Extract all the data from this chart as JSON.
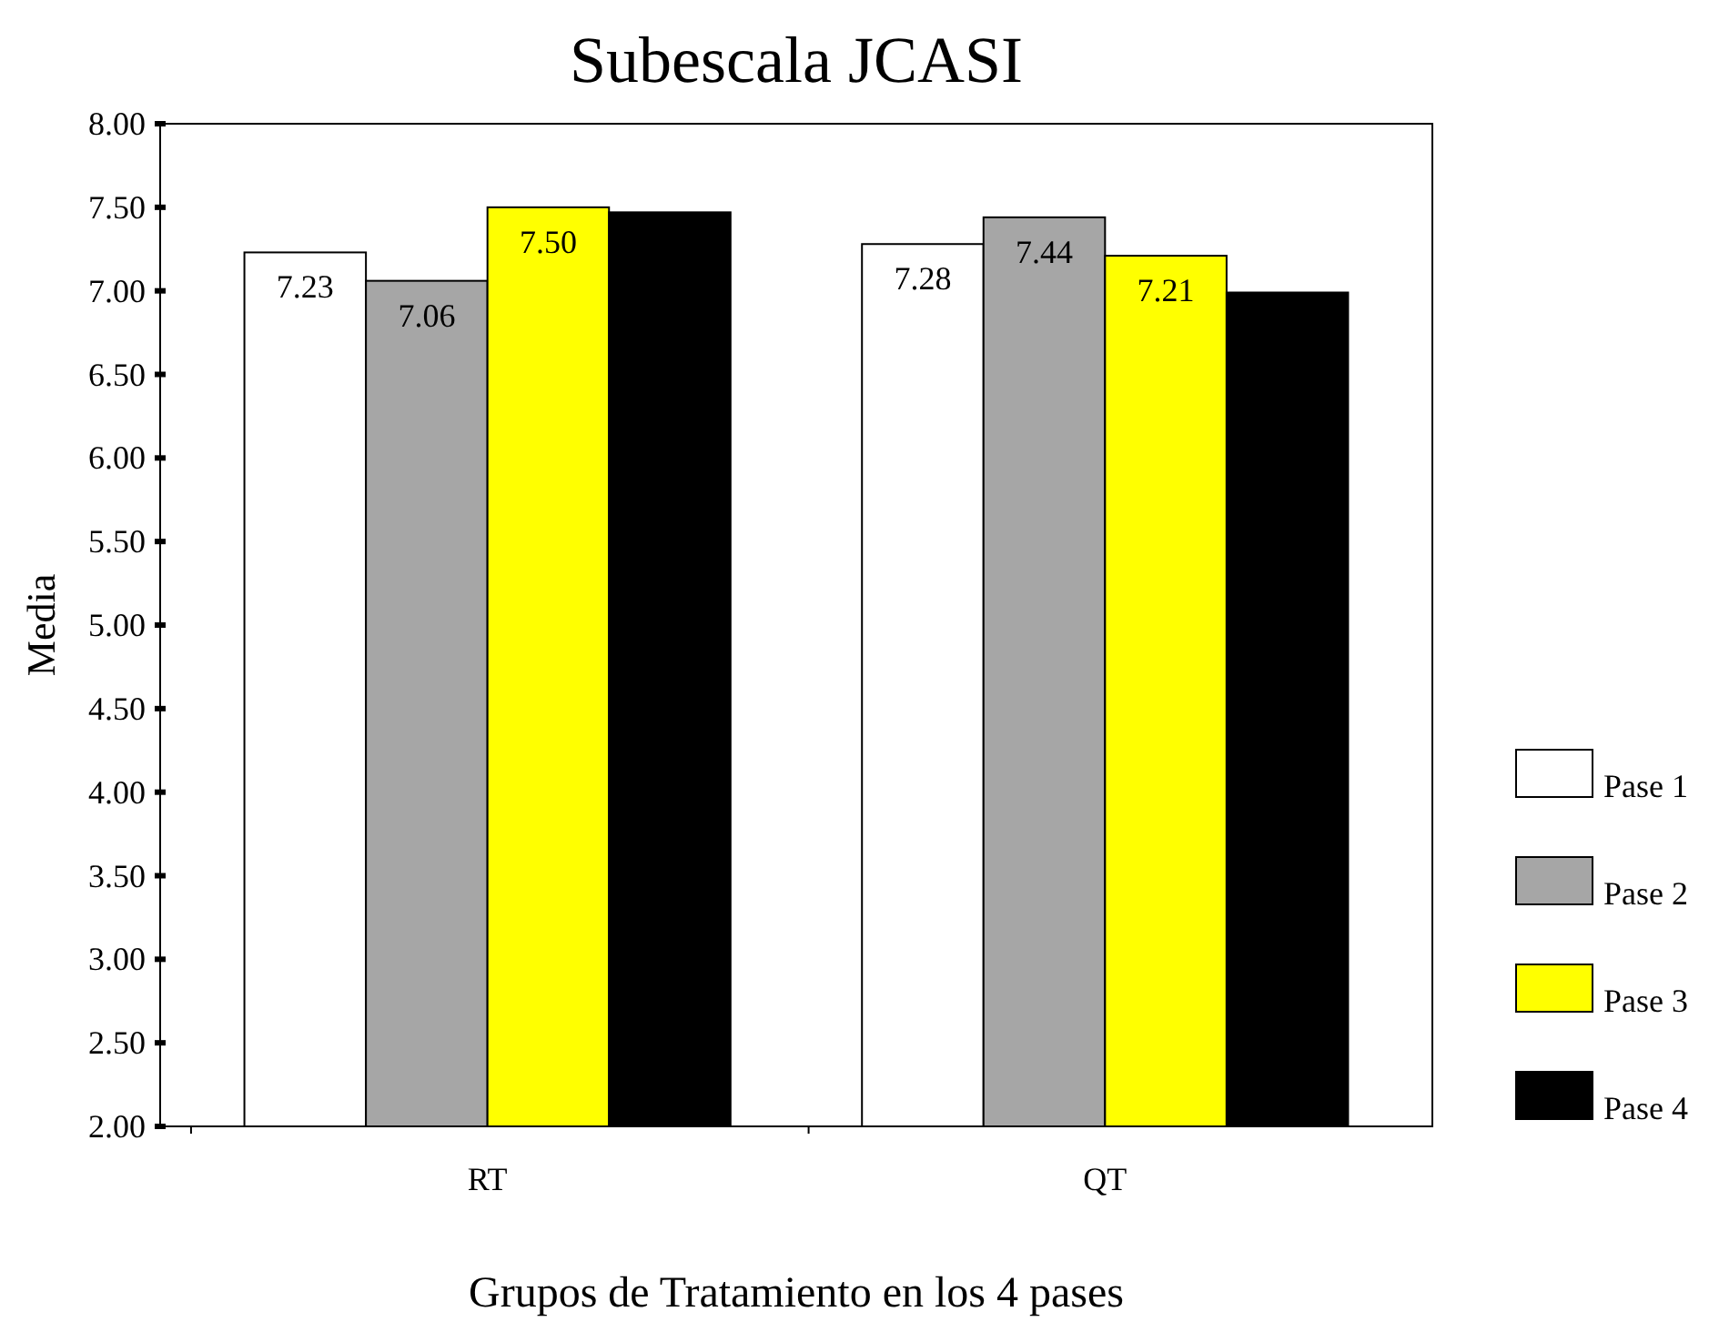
{
  "chart_data": {
    "type": "bar",
    "title": "Subescala JCASI",
    "xlabel": "Grupos de Tratamiento en los 4 pases",
    "ylabel": "Media",
    "categories": [
      "RT",
      "QT"
    ],
    "series": [
      {
        "name": "Pase 1",
        "color": "#ffffff",
        "values": [
          7.23,
          7.28
        ],
        "value_labels": [
          "7.23",
          "7.28"
        ]
      },
      {
        "name": "Pase 2",
        "color": "#a6a6a6",
        "values": [
          7.06,
          7.44
        ],
        "value_labels": [
          "7.06",
          "7.44"
        ]
      },
      {
        "name": "Pase 3",
        "color": "#ffff00",
        "values": [
          7.5,
          7.21
        ],
        "value_labels": [
          "7.50",
          "7.21"
        ]
      },
      {
        "name": "Pase 4",
        "color": "#000000",
        "values": [
          7.47,
          6.99
        ],
        "value_labels": [
          null,
          null
        ]
      }
    ],
    "ylim": [
      2,
      8
    ],
    "yticks": [
      {
        "value": 2,
        "label": "2.00"
      },
      {
        "value": 2.5,
        "label": "2.50"
      },
      {
        "value": 3,
        "label": "3.00"
      },
      {
        "value": 3.5,
        "label": "3.50"
      },
      {
        "value": 4,
        "label": "4.00"
      },
      {
        "value": 4.5,
        "label": "4.50"
      },
      {
        "value": 5,
        "label": "5.00"
      },
      {
        "value": 5.5,
        "label": "5.50"
      },
      {
        "value": 6,
        "label": "6.00"
      },
      {
        "value": 6.5,
        "label": "6.50"
      },
      {
        "value": 7,
        "label": "7.00"
      },
      {
        "value": 7.5,
        "label": "7.50"
      },
      {
        "value": 8,
        "label": "8.00"
      }
    ],
    "grid": false,
    "legend": "right"
  }
}
